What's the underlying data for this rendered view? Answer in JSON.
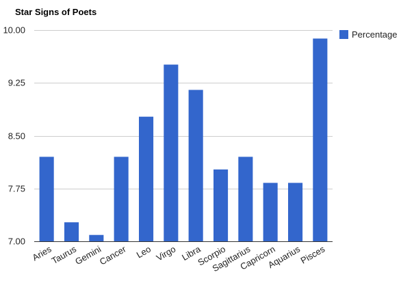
{
  "chart_data": {
    "type": "bar",
    "title": "Star Signs of Poets",
    "xlabel": "",
    "ylabel": "",
    "categories": [
      "Aries",
      "Taurus",
      "Gemini",
      "Cancer",
      "Leo",
      "Virgo",
      "Libra",
      "Scorpio",
      "Sagittarius",
      "Capricorn",
      "Aquarius",
      "Pisces"
    ],
    "series": [
      {
        "name": "Percentage",
        "color": "#3366cc",
        "values": [
          8.2,
          7.27,
          7.09,
          8.2,
          8.77,
          9.51,
          9.15,
          8.02,
          8.2,
          7.83,
          7.83,
          9.88
        ]
      }
    ],
    "ylim": [
      7.0,
      10.0
    ],
    "yticks": [
      "7.00",
      "7.75",
      "8.50",
      "9.25",
      "10.00"
    ],
    "ytick_values": [
      7.0,
      7.75,
      8.5,
      9.25,
      10.0
    ],
    "grid": true,
    "legend_position": "right",
    "colors": {
      "bar": "#3366cc",
      "grid": "#cccccc",
      "baseline": "#333333"
    }
  }
}
